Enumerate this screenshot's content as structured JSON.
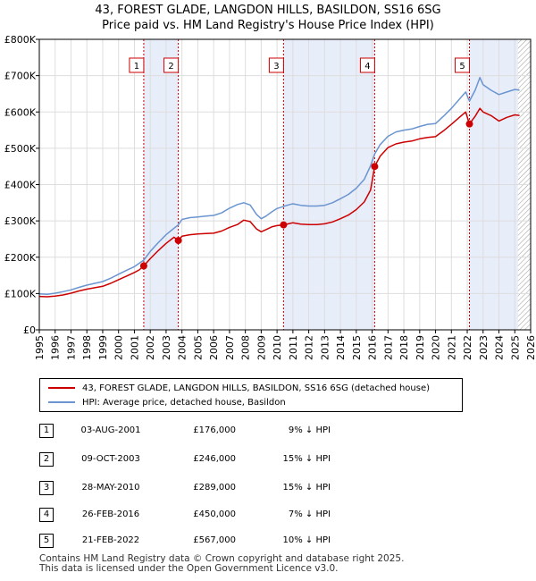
{
  "title_line1": "43, FOREST GLADE, LANGDON HILLS, BASILDON, SS16 6SG",
  "title_line2": "Price paid vs. HM Land Registry's House Price Index (HPI)",
  "colors": {
    "property": "#cc0000",
    "hpi": "#6a95d0",
    "shade": "#e8edfa",
    "vline": "#cc0000"
  },
  "chart_data": {
    "type": "line",
    "xlim": [
      1995,
      2026
    ],
    "ylim": [
      0,
      800000
    ],
    "x_ticks": [
      "1995",
      "1996",
      "1997",
      "1998",
      "1999",
      "2000",
      "2001",
      "2002",
      "2003",
      "2004",
      "2005",
      "2006",
      "2007",
      "2008",
      "2009",
      "2010",
      "2011",
      "2012",
      "2013",
      "2014",
      "2015",
      "2016",
      "2017",
      "2018",
      "2019",
      "2020",
      "2021",
      "2022",
      "2023",
      "2024",
      "2025",
      "2026"
    ],
    "y_ticks": [
      "£0",
      "£100K",
      "£200K",
      "£300K",
      "£400K",
      "£500K",
      "£600K",
      "£700K",
      "£800K"
    ],
    "y_tick_values": [
      0,
      100000,
      200000,
      300000,
      400000,
      500000,
      600000,
      700000,
      800000
    ],
    "shaded_ranges": [
      [
        2001.59,
        2003.77
      ],
      [
        2010.41,
        2016.16
      ],
      [
        2022.14,
        2025.2
      ]
    ],
    "hatch_start": 2025.2,
    "series": [
      {
        "name": "43, FOREST GLADE, LANGDON HILLS, BASILDON, SS16 6SG (detached house)",
        "x": [
          1995,
          1995.5,
          1996,
          1996.5,
          1997,
          1997.5,
          1998,
          1998.5,
          1999,
          1999.5,
          2000,
          2000.5,
          2001,
          2001.3,
          2001.59,
          2002,
          2002.5,
          2003,
          2003.5,
          2003.77,
          2004,
          2004.5,
          2005,
          2005.5,
          2006,
          2006.5,
          2007,
          2007.5,
          2007.9,
          2008.3,
          2008.7,
          2009,
          2009.3,
          2009.7,
          2010,
          2010.41,
          2010.8,
          2011,
          2011.5,
          2012,
          2012.5,
          2013,
          2013.5,
          2014,
          2014.5,
          2015,
          2015.5,
          2015.9,
          2016.16,
          2016.5,
          2017,
          2017.5,
          2018,
          2018.5,
          2019,
          2019.5,
          2020,
          2020.5,
          2021,
          2021.5,
          2021.9,
          2022.14,
          2022.5,
          2022.8,
          2023,
          2023.5,
          2024,
          2024.5,
          2025,
          2025.3
        ],
        "values": [
          92000,
          91000,
          93000,
          96000,
          101000,
          107000,
          112000,
          116000,
          120000,
          128000,
          138000,
          148000,
          158000,
          165000,
          176000,
          196000,
          218000,
          238000,
          255000,
          246000,
          258000,
          262000,
          264000,
          265000,
          266000,
          272000,
          282000,
          290000,
          302000,
          298000,
          278000,
          270000,
          276000,
          284000,
          287000,
          289000,
          293000,
          295000,
          291000,
          290000,
          290000,
          292000,
          297000,
          306000,
          316000,
          331000,
          352000,
          385000,
          450000,
          478000,
          502000,
          512000,
          517000,
          520000,
          526000,
          530000,
          532000,
          548000,
          566000,
          585000,
          600000,
          567000,
          588000,
          610000,
          600000,
          590000,
          575000,
          585000,
          592000,
          590000
        ]
      },
      {
        "name": "HPI: Average price, detached house, Basildon",
        "x": [
          1995,
          1995.5,
          1996,
          1996.5,
          1997,
          1997.5,
          1998,
          1998.5,
          1999,
          1999.5,
          2000,
          2000.5,
          2001,
          2001.59,
          2002,
          2002.5,
          2003,
          2003.5,
          2003.77,
          2004,
          2004.5,
          2005,
          2005.5,
          2006,
          2006.5,
          2007,
          2007.5,
          2007.9,
          2008.3,
          2008.7,
          2009,
          2009.3,
          2009.7,
          2010,
          2010.41,
          2010.8,
          2011,
          2011.5,
          2012,
          2012.5,
          2013,
          2013.5,
          2014,
          2014.5,
          2015,
          2015.5,
          2015.9,
          2016.16,
          2016.5,
          2017,
          2017.5,
          2018,
          2018.5,
          2019,
          2019.5,
          2020,
          2020.5,
          2021,
          2021.5,
          2021.9,
          2022.14,
          2022.5,
          2022.8,
          2023,
          2023.5,
          2024,
          2024.5,
          2025,
          2025.3
        ],
        "values": [
          99000,
          98000,
          101000,
          105000,
          110000,
          117000,
          123000,
          128000,
          133000,
          142000,
          153000,
          164000,
          174000,
          192000,
          216000,
          240000,
          262000,
          280000,
          289000,
          304000,
          309000,
          311000,
          313000,
          315000,
          322000,
          335000,
          345000,
          350000,
          344000,
          318000,
          306000,
          313000,
          326000,
          334000,
          340000,
          345000,
          347000,
          343000,
          341000,
          341000,
          343000,
          350000,
          361000,
          373000,
          390000,
          414000,
          452000,
          484000,
          510000,
          533000,
          545000,
          550000,
          553000,
          560000,
          566000,
          568000,
          588000,
          610000,
          635000,
          655000,
          630000,
          660000,
          695000,
          675000,
          660000,
          648000,
          655000,
          662000,
          660000
        ]
      }
    ],
    "sales": [
      {
        "label": "1",
        "x": 2001.59,
        "value": 176000
      },
      {
        "label": "2",
        "x": 2003.77,
        "value": 246000
      },
      {
        "label": "3",
        "x": 2010.41,
        "value": 289000
      },
      {
        "label": "4",
        "x": 2016.16,
        "value": 450000
      },
      {
        "label": "5",
        "x": 2022.14,
        "value": 567000
      }
    ]
  },
  "legend": {
    "property_label": "43, FOREST GLADE, LANGDON HILLS, BASILDON, SS16 6SG (detached house)",
    "hpi_label": "HPI: Average price, detached house, Basildon"
  },
  "transactions": [
    {
      "num": "1",
      "date": "03-AUG-2001",
      "price": "£176,000",
      "hpi": "9% ↓ HPI"
    },
    {
      "num": "2",
      "date": "09-OCT-2003",
      "price": "£246,000",
      "hpi": "15% ↓ HPI"
    },
    {
      "num": "3",
      "date": "28-MAY-2010",
      "price": "£289,000",
      "hpi": "15% ↓ HPI"
    },
    {
      "num": "4",
      "date": "26-FEB-2016",
      "price": "£450,000",
      "hpi": "7% ↓ HPI"
    },
    {
      "num": "5",
      "date": "21-FEB-2022",
      "price": "£567,000",
      "hpi": "10% ↓ HPI"
    }
  ],
  "footer_line1": "Contains HM Land Registry data © Crown copyright and database right 2025.",
  "footer_line2": "This data is licensed under the Open Government Licence v3.0."
}
